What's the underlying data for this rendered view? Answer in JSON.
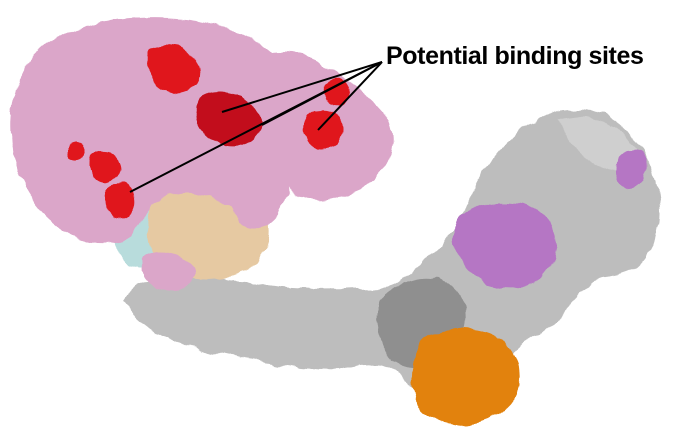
{
  "annotation": {
    "text": "Potential binding sites"
  },
  "colors": {
    "background": "#ffffff",
    "protein_pink": "#dba6c9",
    "binding_site_red": "#e0141e",
    "cyan_chain": "#b8dcdc",
    "tan_chain": "#e6c9a2",
    "gray_backbone": "#bdbdbd",
    "purple_patch": "#b576c4",
    "orange_domain": "#e28210",
    "callout_line": "#000000"
  },
  "icons": [
    "protein-surface-illustration"
  ]
}
